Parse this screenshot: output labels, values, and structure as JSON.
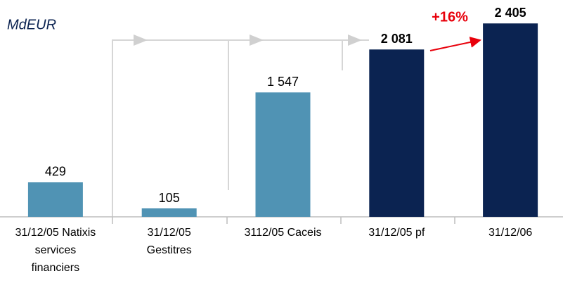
{
  "chart_data": {
    "type": "bar",
    "unit_label": "MdEUR",
    "categories": [
      "31/12/05 Natixis\nservices\nfinanciers",
      "31/12/05\nGestitres",
      "3112/05 Caceis",
      "31/12/05 pf",
      "31/12/06"
    ],
    "values": [
      429,
      105,
      1547,
      2081,
      2405
    ],
    "value_labels": [
      "429",
      "105",
      "1 547",
      "2 081",
      "2 405"
    ],
    "colors": [
      "#5093b4",
      "#5093b4",
      "#5093b4",
      "#0b2351",
      "#0b2351"
    ],
    "ylim": [
      0,
      2600
    ],
    "annotation": "+16%"
  }
}
